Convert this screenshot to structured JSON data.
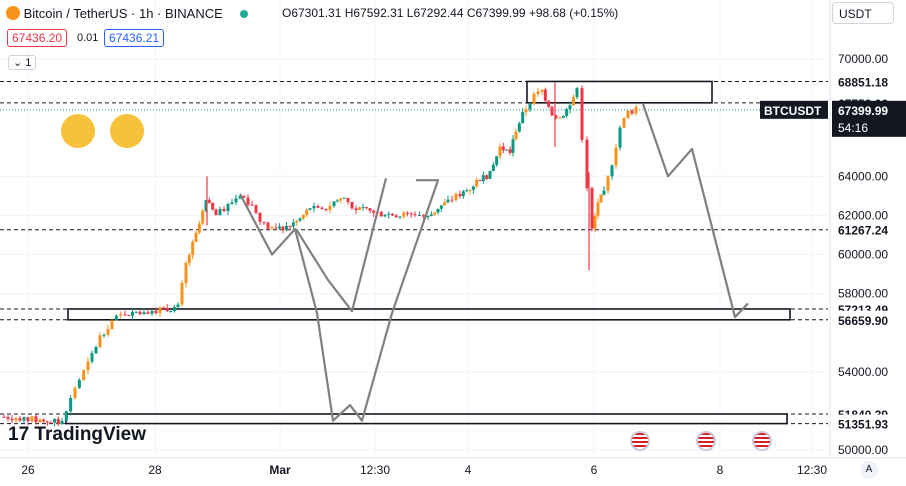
{
  "header": {
    "symbol_title": "Bitcoin / TetherUS · 1h · BINANCE",
    "ohlc": "O67301.31 H67592.31 L67292.44 C67399.99 +98.68 (+0.15%)",
    "sell_price": "67436.20",
    "spread": "0.01",
    "buy_price": "67436.21",
    "collapse_label": "1"
  },
  "currency_button": "USDT",
  "brand": "TradingView",
  "current_price_tag": {
    "symbol": "BTCUSDT",
    "price": "67399.99",
    "countdown": "54:16"
  },
  "colors": {
    "up": "#089981",
    "down": "#f23645",
    "wick_up": "#26a69a",
    "orange_up": "#f7931a",
    "projection": "#808080"
  },
  "chart_data": {
    "type": "candlestick",
    "y_ticks": [
      "70000.00",
      "64000.00",
      "62000.00",
      "60000.00",
      "58000.00",
      "54000.00",
      "50000.00"
    ],
    "x_ticks": [
      "26",
      "28",
      "Mar",
      "12:30",
      "4",
      "6",
      "8",
      "12:30"
    ],
    "ylim": [
      50000,
      70500
    ],
    "level_labels": [
      "68851.18",
      "67758.06",
      "61267.24",
      "57213.49",
      "56659.90",
      "51840.39",
      "51351.93"
    ],
    "levels": [
      68851.18,
      67758.06,
      61267.24,
      57213.49,
      56659.9,
      51840.39,
      51351.93
    ],
    "zones": [
      {
        "x_start": 527,
        "x_end": 712,
        "low": 67758.06,
        "high": 68851.18
      },
      {
        "x_start": 68,
        "x_end": 790,
        "low": 56659.9,
        "high": 57213.49
      },
      {
        "x_start": 66,
        "x_end": 787,
        "low": 51351.93,
        "high": 51840.39
      }
    ],
    "price_path": [
      [
        51700,
        0
      ],
      [
        51650,
        20
      ],
      [
        51500,
        40
      ],
      [
        51400,
        62
      ],
      [
        53200,
        75
      ],
      [
        54400,
        88
      ],
      [
        55800,
        100
      ],
      [
        56600,
        112
      ],
      [
        57000,
        125
      ],
      [
        57100,
        140
      ],
      [
        57200,
        160
      ],
      [
        57300,
        178
      ],
      [
        59500,
        186
      ],
      [
        61000,
        196
      ],
      [
        62700,
        206
      ],
      [
        62000,
        216
      ],
      [
        62500,
        228
      ],
      [
        63100,
        240
      ],
      [
        62500,
        252
      ],
      [
        61500,
        264
      ],
      [
        61200,
        276
      ],
      [
        61500,
        290
      ],
      [
        61800,
        300
      ],
      [
        62400,
        310
      ],
      [
        62200,
        322
      ],
      [
        62700,
        334
      ],
      [
        62900,
        344
      ],
      [
        62300,
        356
      ],
      [
        62200,
        370
      ],
      [
        62100,
        385
      ],
      [
        62000,
        400
      ],
      [
        62100,
        415
      ],
      [
        61900,
        428
      ],
      [
        62400,
        438
      ],
      [
        62700,
        448
      ],
      [
        63100,
        460
      ],
      [
        63400,
        470
      ],
      [
        63900,
        480
      ],
      [
        64100,
        490
      ],
      [
        65500,
        500
      ],
      [
        65200,
        510
      ],
      [
        66400,
        516
      ],
      [
        67500,
        526
      ],
      [
        68100,
        534
      ],
      [
        68400,
        542
      ],
      [
        67200,
        552
      ],
      [
        67000,
        560
      ],
      [
        67600,
        570
      ],
      [
        68500,
        577
      ],
      [
        66000,
        582
      ],
      [
        63500,
        587
      ],
      [
        61200,
        592
      ],
      [
        62700,
        598
      ],
      [
        63100,
        604
      ],
      [
        64700,
        612
      ],
      [
        66500,
        620
      ],
      [
        67300,
        628
      ],
      [
        67399.99,
        636
      ]
    ],
    "spikes": [
      {
        "x": 207,
        "high": 64000,
        "low": 61500
      },
      {
        "x": 555,
        "high": 68800,
        "low": 65500
      },
      {
        "x": 589,
        "high": 64200,
        "low": 59200
      }
    ],
    "projections": [
      {
        "points": [
          [
            240,
            63100
          ],
          [
            272,
            60000
          ],
          [
            295,
            61300
          ],
          [
            317,
            57000
          ],
          [
            333,
            51500
          ],
          [
            350,
            52300
          ],
          [
            362,
            51500
          ],
          [
            392,
            57000
          ],
          [
            438,
            63800
          ],
          [
            416,
            63800
          ]
        ]
      },
      {
        "points": [
          [
            296,
            61300
          ],
          [
            328,
            58700
          ],
          [
            352,
            57100
          ],
          [
            386,
            63900
          ]
        ]
      },
      {
        "points": [
          [
            643,
            67700
          ],
          [
            668,
            64000
          ],
          [
            692,
            65400
          ],
          [
            735,
            56800
          ],
          [
            748,
            57500
          ]
        ]
      }
    ]
  },
  "event_markers": [
    "us-flag-icon",
    "us-flag-icon",
    "us-flag-icon"
  ]
}
